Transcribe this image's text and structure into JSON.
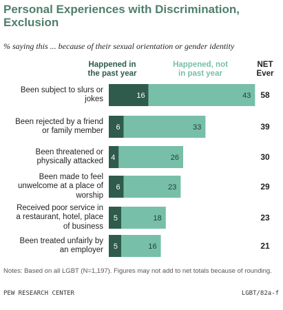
{
  "chart_data": {
    "type": "bar",
    "stacked": true,
    "orientation": "horizontal",
    "title": "Personal Experiences with Discrimination, Exclusion",
    "subtitle": "% saying this ... because of their sexual orientation or gender identity",
    "categories": [
      "Been subject to slurs or jokes",
      "Been rejected by a friend or family member",
      "Been threatened or physically attacked",
      "Been made to feel unwelcome at a place of worship",
      "Received poor service in a restaurant, hotel, place of business",
      "Been treated unfairly by an employer"
    ],
    "series": [
      {
        "name": "Happened in the past year",
        "values": [
          16,
          6,
          4,
          6,
          5,
          5
        ]
      },
      {
        "name": "Happened, not in past year",
        "values": [
          43,
          33,
          26,
          23,
          18,
          16
        ]
      }
    ],
    "net_header": "NET Ever",
    "net": [
      58,
      39,
      30,
      29,
      23,
      21
    ],
    "colors": {
      "past_year": "#2e5b4b",
      "not_past_year": "#77bfa9",
      "title": "#4f7f6a",
      "header_light": "#77bfa9",
      "header_dark": "#2e5b4b"
    }
  },
  "labels": {
    "categories_lines": [
      [
        "Been subject to slurs or",
        "jokes"
      ],
      [
        "Been rejected by a friend",
        "or family member"
      ],
      [
        "Been threatened or",
        "physically attacked"
      ],
      [
        "Been made to feel",
        "unwelcome at a place of",
        "worship"
      ],
      [
        "Received poor service in",
        "a restaurant, hotel, place",
        "of business"
      ],
      [
        "Been treated unfairly by",
        "an employer"
      ]
    ],
    "header_past_lines": [
      "Happened in",
      "the past year"
    ],
    "header_not_lines": [
      "Happened, not",
      "in past year"
    ],
    "net_header_lines": [
      "NET",
      "Ever"
    ]
  },
  "notes": "Notes: Based on all LGBT (N=1,197). Figures may not add to net totals because of rounding.",
  "source": "PEW RESEARCH CENTER",
  "code": "LGBT/82a-f"
}
